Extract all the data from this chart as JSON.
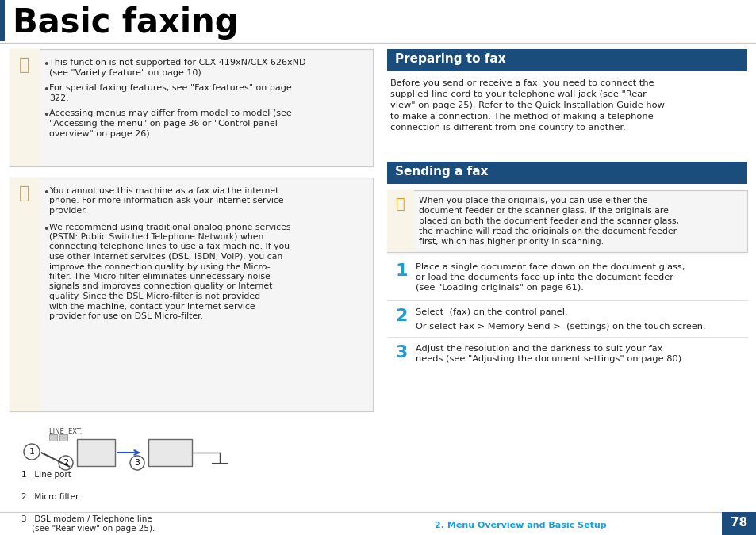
{
  "page_bg": "#ffffff",
  "title": "Basic faxing",
  "title_color": "#000000",
  "header_bar_color": "#1a4d7c",
  "section_header_bg": "#1a4d7c",
  "section_header_fg": "#ffffff",
  "section1_header": "Preparing to fax",
  "section2_header": "Sending a fax",
  "box_bg": "#f5f5f5",
  "box_border": "#cccccc",
  "note_icon_color": "#e8a020",
  "note_icon_bg": "#f8f4e8",
  "step_num_color": "#1a9ed4",
  "text_color": "#222222",
  "footer_color": "#1a9ed4",
  "footer_text": "2. Menu Overview and Basic Setup",
  "page_number": "78",
  "page_num_bg": "#1a4d7c",
  "left_box1_bullets": [
    "This function is not supported for CLX-419xN/CLX-626xND (see \"Variety feature\" on page 10).",
    "For special faxing features, see \"Fax features\" on page 322.",
    "Accessing menus may differ from model to model (see \"Accessing the menu\" on page 36 or \"Control panel overview\" on page 26)."
  ],
  "left_box2_bullets": [
    "You cannot use this machine as a fax via the internet phone. For more information ask your internet service provider.",
    "We recommend using traditional analog phone services (PSTN: Public Switched Telephone Network) when connecting telephone lines to use a fax machine. If you use other Internet services (DSL, ISDN, VoIP), you can improve the connection quality by using the Micro-filter. The Micro-filter eliminates unnecessary noise signals and improves connection quality or Internet quality. Since the DSL Micro-filter is not provided with the machine, contact your Internet service provider for use on DSL Micro-filter."
  ],
  "diagram_legend": [
    "1   Line port",
    "2   Micro filter",
    "3   DSL modem / Telephone line\n    (see \"Rear view\" on page 25)."
  ],
  "prep_text": "Before you send or receive a fax, you need to connect the supplied line cord to your telephone wall jack (see \"Rear view\" on page 25). Refer to the Quick Installation Guide how to make a connection. The method of making a telephone connection is different from one country to another.",
  "send_note_text": "When you place the originals, you can use either the document feeder or the scanner glass. If the originals are placed on both the document feeder and the scanner glass, the machine will read the originals on the document feeder first, which has higher priority in scanning.",
  "step1_text": "Place a single document face down on the document glass, or load the documents face up into the document feeder (see \"Loading originals\" on page 61).",
  "step2_line1": "Select  (fax) on the control panel.",
  "step2_line2": "Or select Fax > Memory Send >  (settings) on the touch screen.",
  "step3_text": "Adjust the resolution and the darkness to suit your fax needs (see \"Adjusting the document settings\" on page 80)."
}
